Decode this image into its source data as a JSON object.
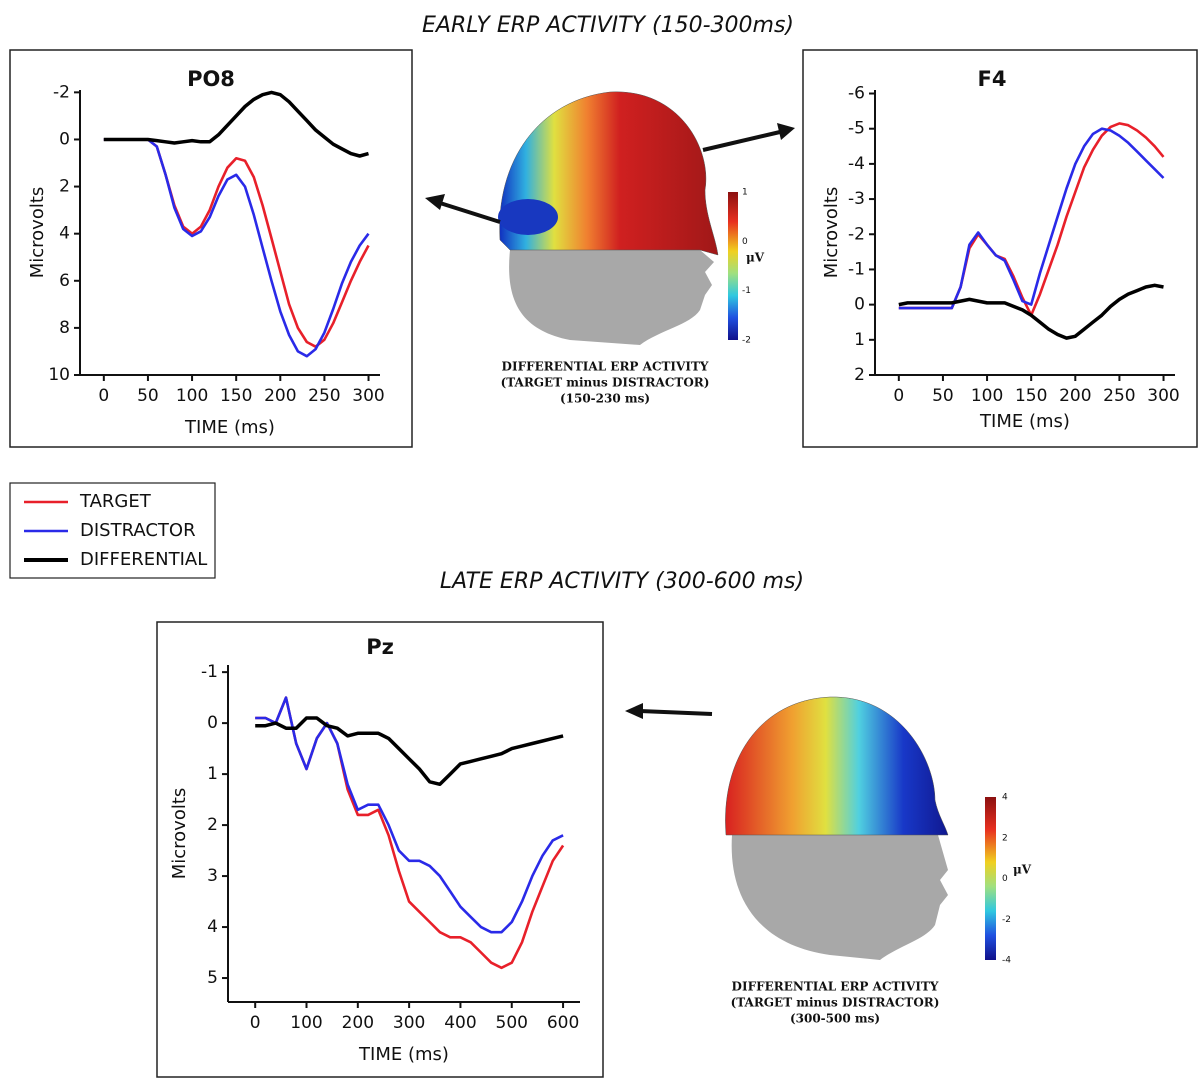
{
  "figure": {
    "sections": [
      "EARLY ERP ACTIVITY (150-300ms)",
      "LATE ERP ACTIVITY (300-600 ms)"
    ],
    "topomaps": [
      {
        "caption": [
          "DIFFERENTIAL ERP ACTIVITY",
          "(TARGET minus DISTRACTOR)",
          "(150-230 ms)"
        ],
        "scale_label": "μV",
        "scale_ticks": [
          1,
          0,
          -1,
          -2
        ]
      },
      {
        "caption": [
          "DIFFERENTIAL ERP ACTIVITY",
          "(TARGET minus DISTRACTOR)",
          "(300-500 ms)"
        ],
        "scale_label": "μV",
        "scale_ticks": [
          4,
          2,
          0,
          -2,
          -4
        ]
      }
    ]
  },
  "chart_data": [
    {
      "type": "line",
      "title": "PO8",
      "xlabel": "TIME (ms)",
      "ylabel": "Microvolts",
      "x": [
        0,
        10,
        20,
        30,
        40,
        50,
        60,
        70,
        80,
        90,
        100,
        110,
        120,
        130,
        140,
        150,
        160,
        170,
        180,
        190,
        200,
        210,
        220,
        230,
        240,
        250,
        260,
        270,
        280,
        290,
        300
      ],
      "xlim": [
        -27,
        313
      ],
      "ylim": [
        10,
        -2.1
      ],
      "xticks": [
        0,
        50,
        100,
        150,
        200,
        250,
        300
      ],
      "yticks": [
        -2,
        0,
        2,
        4,
        6,
        8,
        10
      ],
      "series": [
        {
          "name": "TARGET",
          "color": "#e8202a",
          "values": [
            0,
            0,
            0,
            0,
            0,
            0,
            0.3,
            1.5,
            2.8,
            3.7,
            4.0,
            3.7,
            3.0,
            2.0,
            1.2,
            0.8,
            0.9,
            1.6,
            2.8,
            4.2,
            5.6,
            7.0,
            8.0,
            8.6,
            8.8,
            8.5,
            7.8,
            6.9,
            6.0,
            5.2,
            4.5
          ]
        },
        {
          "name": "DISTRACTOR",
          "color": "#2a2ae8",
          "values": [
            0,
            0,
            0,
            0,
            0,
            0,
            0.3,
            1.5,
            2.9,
            3.8,
            4.1,
            3.9,
            3.3,
            2.4,
            1.7,
            1.5,
            2.0,
            3.2,
            4.6,
            6.0,
            7.3,
            8.3,
            9.0,
            9.2,
            8.9,
            8.2,
            7.2,
            6.1,
            5.2,
            4.5,
            4.0
          ]
        },
        {
          "name": "DIFFERENTIAL",
          "color": "#000000",
          "values": [
            0,
            0,
            0,
            0,
            0,
            0,
            0.05,
            0.1,
            0.15,
            0.1,
            0.05,
            0.1,
            0.1,
            -0.2,
            -0.6,
            -1.0,
            -1.4,
            -1.7,
            -1.9,
            -2.0,
            -1.9,
            -1.6,
            -1.2,
            -0.8,
            -0.4,
            -0.1,
            0.2,
            0.4,
            0.6,
            0.7,
            0.6
          ]
        }
      ]
    },
    {
      "type": "line",
      "title": "F4",
      "xlabel": "TIME (ms)",
      "ylabel": "Microvolts",
      "x": [
        0,
        10,
        20,
        30,
        40,
        50,
        60,
        70,
        80,
        90,
        100,
        110,
        120,
        130,
        140,
        150,
        160,
        170,
        180,
        190,
        200,
        210,
        220,
        230,
        240,
        250,
        260,
        270,
        280,
        290,
        300
      ],
      "xlim": [
        -27,
        313
      ],
      "ylim": [
        2,
        -6.1
      ],
      "xticks": [
        0,
        50,
        100,
        150,
        200,
        250,
        300
      ],
      "yticks": [
        -6,
        -5,
        -4,
        -3,
        -2,
        -1,
        0,
        1,
        2
      ],
      "series": [
        {
          "color": "#e8202a",
          "values": [
            0.1,
            0.1,
            0.1,
            0.1,
            0.1,
            0.1,
            0.1,
            -0.5,
            -1.6,
            -2.0,
            -1.7,
            -1.4,
            -1.3,
            -0.8,
            -0.2,
            0.3,
            -0.3,
            -1.0,
            -1.7,
            -2.5,
            -3.2,
            -3.9,
            -4.4,
            -4.8,
            -5.05,
            -5.15,
            -5.1,
            -4.95,
            -4.75,
            -4.5,
            -4.2
          ]
        },
        {
          "color": "#2a2ae8",
          "values": [
            0.1,
            0.1,
            0.1,
            0.1,
            0.1,
            0.1,
            0.1,
            -0.5,
            -1.7,
            -2.05,
            -1.7,
            -1.4,
            -1.25,
            -0.7,
            -0.1,
            0.0,
            -0.9,
            -1.7,
            -2.5,
            -3.3,
            -4.0,
            -4.5,
            -4.85,
            -5.0,
            -4.95,
            -4.8,
            -4.6,
            -4.35,
            -4.1,
            -3.85,
            -3.6
          ]
        },
        {
          "color": "#000000",
          "values": [
            0,
            -0.05,
            -0.05,
            -0.05,
            -0.05,
            -0.05,
            -0.05,
            -0.1,
            -0.15,
            -0.1,
            -0.05,
            -0.05,
            -0.05,
            0.05,
            0.15,
            0.3,
            0.5,
            0.7,
            0.85,
            0.95,
            0.9,
            0.7,
            0.5,
            0.3,
            0.05,
            -0.15,
            -0.3,
            -0.4,
            -0.5,
            -0.55,
            -0.5
          ]
        }
      ]
    },
    {
      "type": "line",
      "title": "Pz",
      "xlabel": "TIME (ms)",
      "ylabel": "Microvolts",
      "x": [
        0,
        20,
        40,
        60,
        80,
        100,
        120,
        140,
        160,
        180,
        200,
        220,
        240,
        260,
        280,
        300,
        320,
        340,
        360,
        380,
        400,
        420,
        440,
        460,
        480,
        500,
        520,
        540,
        560,
        580,
        600
      ],
      "xlim": [
        -53,
        633
      ],
      "ylim": [
        5.47,
        -1.14
      ],
      "xticks": [
        0,
        100,
        200,
        300,
        400,
        500,
        600
      ],
      "yticks": [
        -1,
        0,
        1,
        2,
        3,
        4,
        5
      ],
      "series": [
        {
          "color": "#e8202a",
          "values": [
            -0.1,
            -0.1,
            0,
            -0.5,
            0.4,
            0.9,
            0.3,
            0,
            0.4,
            1.3,
            1.8,
            1.8,
            1.7,
            2.2,
            2.9,
            3.5,
            3.7,
            3.9,
            4.1,
            4.2,
            4.2,
            4.3,
            4.5,
            4.7,
            4.8,
            4.7,
            4.3,
            3.7,
            3.2,
            2.7,
            2.4
          ]
        },
        {
          "color": "#2a2ae8",
          "values": [
            -0.1,
            -0.1,
            0,
            -0.5,
            0.4,
            0.9,
            0.3,
            0,
            0.4,
            1.2,
            1.7,
            1.6,
            1.6,
            2.0,
            2.5,
            2.7,
            2.7,
            2.8,
            3.0,
            3.3,
            3.6,
            3.8,
            4.0,
            4.1,
            4.1,
            3.9,
            3.5,
            3.0,
            2.6,
            2.3,
            2.2
          ]
        },
        {
          "color": "#000000",
          "values": [
            0.05,
            0.05,
            0,
            0.1,
            0.1,
            -0.1,
            -0.1,
            0.05,
            0.1,
            0.25,
            0.2,
            0.2,
            0.2,
            0.3,
            0.5,
            0.7,
            0.9,
            1.15,
            1.2,
            1.0,
            0.8,
            0.75,
            0.7,
            0.65,
            0.6,
            0.5,
            0.45,
            0.4,
            0.35,
            0.3,
            0.25
          ]
        }
      ]
    }
  ]
}
